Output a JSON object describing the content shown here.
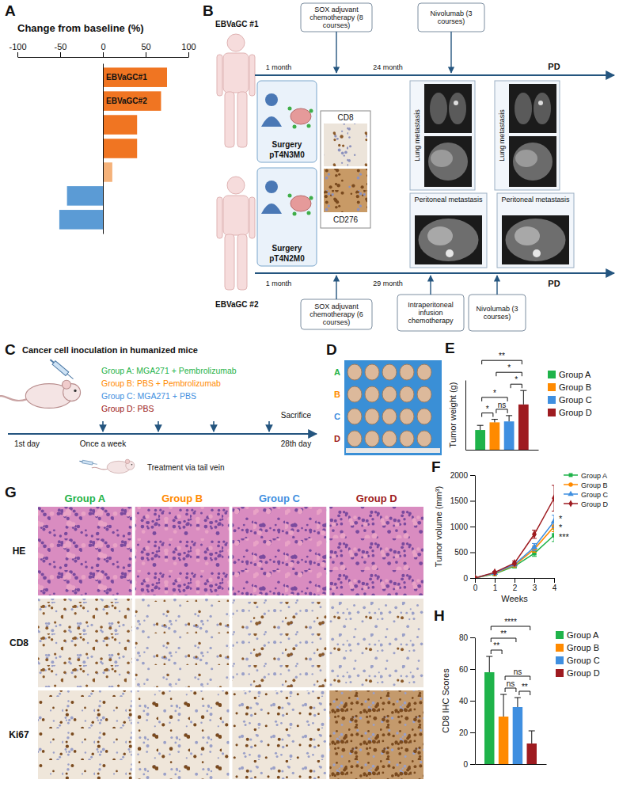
{
  "chart_data": [
    {
      "panel": "A",
      "type": "bar",
      "orientation": "horizontal",
      "title": "Change from baseline (%)",
      "categories": [
        "EBVaGC#1",
        "EBVaGC#2",
        null,
        null,
        null,
        null,
        null
      ],
      "values": [
        75,
        68,
        40,
        40,
        11,
        -42,
        -51
      ],
      "colors": [
        "#f07522",
        "#f07522",
        "#f07522",
        "#f07522",
        "#f5b27a",
        "#5b9bd5",
        "#5b9bd5"
      ],
      "xlim": [
        -100,
        100
      ],
      "xticks": [
        -100,
        -50,
        0,
        50,
        100
      ]
    },
    {
      "panel": "E",
      "type": "bar",
      "y_label": "Tumor weight (g)",
      "categories": [
        null
      ],
      "series": [
        {
          "name": "Group A",
          "color": "#1fb34a",
          "values": [
            0.85
          ],
          "errors": [
            0.2
          ]
        },
        {
          "name": "Group B",
          "color": "#ff8a00",
          "values": [
            1.18
          ],
          "errors": [
            0.13
          ]
        },
        {
          "name": "Group C",
          "color": "#3f8fe0",
          "values": [
            1.22
          ],
          "errors": [
            0.25
          ]
        },
        {
          "name": "Group D",
          "color": "#9e1b20",
          "values": [
            1.95
          ],
          "errors": [
            0.6
          ]
        }
      ],
      "ylim": [
        0,
        3
      ],
      "tick_labels": false,
      "legend": "right",
      "significance": [
        {
          "pair": [
            0,
            1
          ],
          "label": "*"
        },
        {
          "pair": [
            1,
            2
          ],
          "label": "ns"
        },
        {
          "pair": [
            2,
            3
          ],
          "label": "*"
        },
        {
          "pair": [
            0,
            2
          ],
          "label": "*"
        },
        {
          "pair": [
            1,
            3
          ],
          "label": "*"
        },
        {
          "pair": [
            0,
            3
          ],
          "label": "**"
        }
      ]
    },
    {
      "panel": "F",
      "type": "line",
      "x_label": "Weeks",
      "y_label": "Tumor volume (mm³)",
      "x": [
        0,
        1,
        2,
        3,
        4
      ],
      "xlim": [
        0,
        4
      ],
      "xticks": [
        0,
        1,
        2,
        3,
        4
      ],
      "ylim": [
        0,
        2000
      ],
      "yticks": [
        0,
        500,
        1000,
        1500,
        2000
      ],
      "legend": "upper right",
      "series": [
        {
          "name": "Group A",
          "color": "#1fb34a",
          "marker": "square",
          "values": [
            0,
            80,
            230,
            480,
            830
          ],
          "errors": [
            0,
            15,
            30,
            60,
            120
          ]
        },
        {
          "name": "Group B",
          "color": "#ff8a00",
          "marker": "circle",
          "values": [
            0,
            90,
            250,
            560,
            1000
          ],
          "errors": [
            0,
            15,
            30,
            60,
            100
          ]
        },
        {
          "name": "Group C",
          "color": "#3f8fe0",
          "marker": "triangle",
          "values": [
            0,
            100,
            265,
            600,
            1100
          ],
          "errors": [
            0,
            15,
            30,
            70,
            120
          ]
        },
        {
          "name": "Group D",
          "color": "#9e1b20",
          "marker": "diamond",
          "values": [
            0,
            110,
            290,
            850,
            1550
          ],
          "errors": [
            0,
            20,
            40,
            80,
            250
          ]
        }
      ],
      "annotations": [
        {
          "text": "*",
          "x": 4,
          "y": 1150
        },
        {
          "text": "*",
          "x": 4,
          "y": 980
        },
        {
          "text": "***",
          "x": 4,
          "y": 800
        }
      ]
    },
    {
      "panel": "H",
      "type": "bar",
      "y_label": "CD8 IHC Scores",
      "categories": [
        null
      ],
      "series": [
        {
          "name": "Group A",
          "color": "#1fb34a",
          "values": [
            58
          ],
          "errors": [
            10
          ]
        },
        {
          "name": "Group B",
          "color": "#ff8a00",
          "values": [
            30
          ],
          "errors": [
            14
          ]
        },
        {
          "name": "Group C",
          "color": "#3f8fe0",
          "values": [
            36
          ],
          "errors": [
            6
          ]
        },
        {
          "name": "Group D",
          "color": "#9e1b20",
          "values": [
            13
          ],
          "errors": [
            8
          ]
        }
      ],
      "ylim": [
        0,
        80
      ],
      "yticks": [
        0,
        20,
        40,
        60,
        80
      ],
      "legend": "right",
      "significance": [
        {
          "pair": [
            0,
            1
          ],
          "label": "**"
        },
        {
          "pair": [
            1,
            2
          ],
          "label": "ns"
        },
        {
          "pair": [
            2,
            3
          ],
          "label": "**"
        },
        {
          "pair": [
            0,
            2
          ],
          "label": "**"
        },
        {
          "pair": [
            1,
            3
          ],
          "label": "ns"
        },
        {
          "pair": [
            0,
            3
          ],
          "label": "****"
        }
      ]
    }
  ],
  "diagrams": {
    "B": {
      "panel": "B",
      "patients": [
        {
          "name": "EBVaGC #1",
          "surgery": "Surgery",
          "stage": "pT4N3M0",
          "intervals": [
            "1 month",
            "24 month"
          ],
          "treatments": [
            "SOX adjuvant chemotherapy (8 courses)",
            "Nivolumab (3 courses)"
          ],
          "imaging": [
            "Lung metastasis",
            "Lung metastasis"
          ],
          "outcome": "PD"
        },
        {
          "name": "EBVaGC #2",
          "surgery": "Surgery",
          "stage": "pT4N2M0",
          "intervals": [
            "1 month",
            "29 month"
          ],
          "treatments": [
            "SOX adjuvant chemotherapy (6 courses)",
            "Intraperitoneal infusion chemotherapy",
            "Nivolumab (3 courses)"
          ],
          "imaging": [
            "Peritoneal metastasis",
            "Peritoneal metastasis"
          ],
          "outcome": "PD"
        }
      ],
      "staining": [
        "CD8",
        "CD276"
      ]
    },
    "C": {
      "panel": "C",
      "title": "Cancer cell inoculation in humanized mice",
      "groups": [
        {
          "text": "Group A: MGA271 + Pembrolizumab",
          "color": "#1fb34a"
        },
        {
          "text": "Group B: PBS + Pembrolizumab",
          "color": "#ff8a00"
        },
        {
          "text": "Group C: MGA271 + PBS",
          "color": "#3f8fe0"
        },
        {
          "text": "Group D: PBS",
          "color": "#9e1b20"
        }
      ],
      "timeline": {
        "start": "1st day",
        "schedule": "Once a week",
        "end_event": "Sacrifice",
        "end": "28th day"
      },
      "route": "Treatment via tail vein"
    },
    "D": {
      "panel": "D",
      "rows": [
        {
          "label": "A",
          "color": "#1fb34a",
          "tumors": 5
        },
        {
          "label": "B",
          "color": "#ff8a00",
          "tumors": 5
        },
        {
          "label": "C",
          "color": "#3f8fe0",
          "tumors": 5
        },
        {
          "label": "D",
          "color": "#9e1b20",
          "tumors": 5
        }
      ]
    },
    "G": {
      "panel": "G",
      "columns": [
        {
          "label": "Group A",
          "color": "#1fb34a"
        },
        {
          "label": "Group B",
          "color": "#ff8a00"
        },
        {
          "label": "Group C",
          "color": "#3f8fe0"
        },
        {
          "label": "Group D",
          "color": "#9e1b20"
        }
      ],
      "rows": [
        "HE",
        "CD8",
        "Ki67"
      ]
    }
  }
}
